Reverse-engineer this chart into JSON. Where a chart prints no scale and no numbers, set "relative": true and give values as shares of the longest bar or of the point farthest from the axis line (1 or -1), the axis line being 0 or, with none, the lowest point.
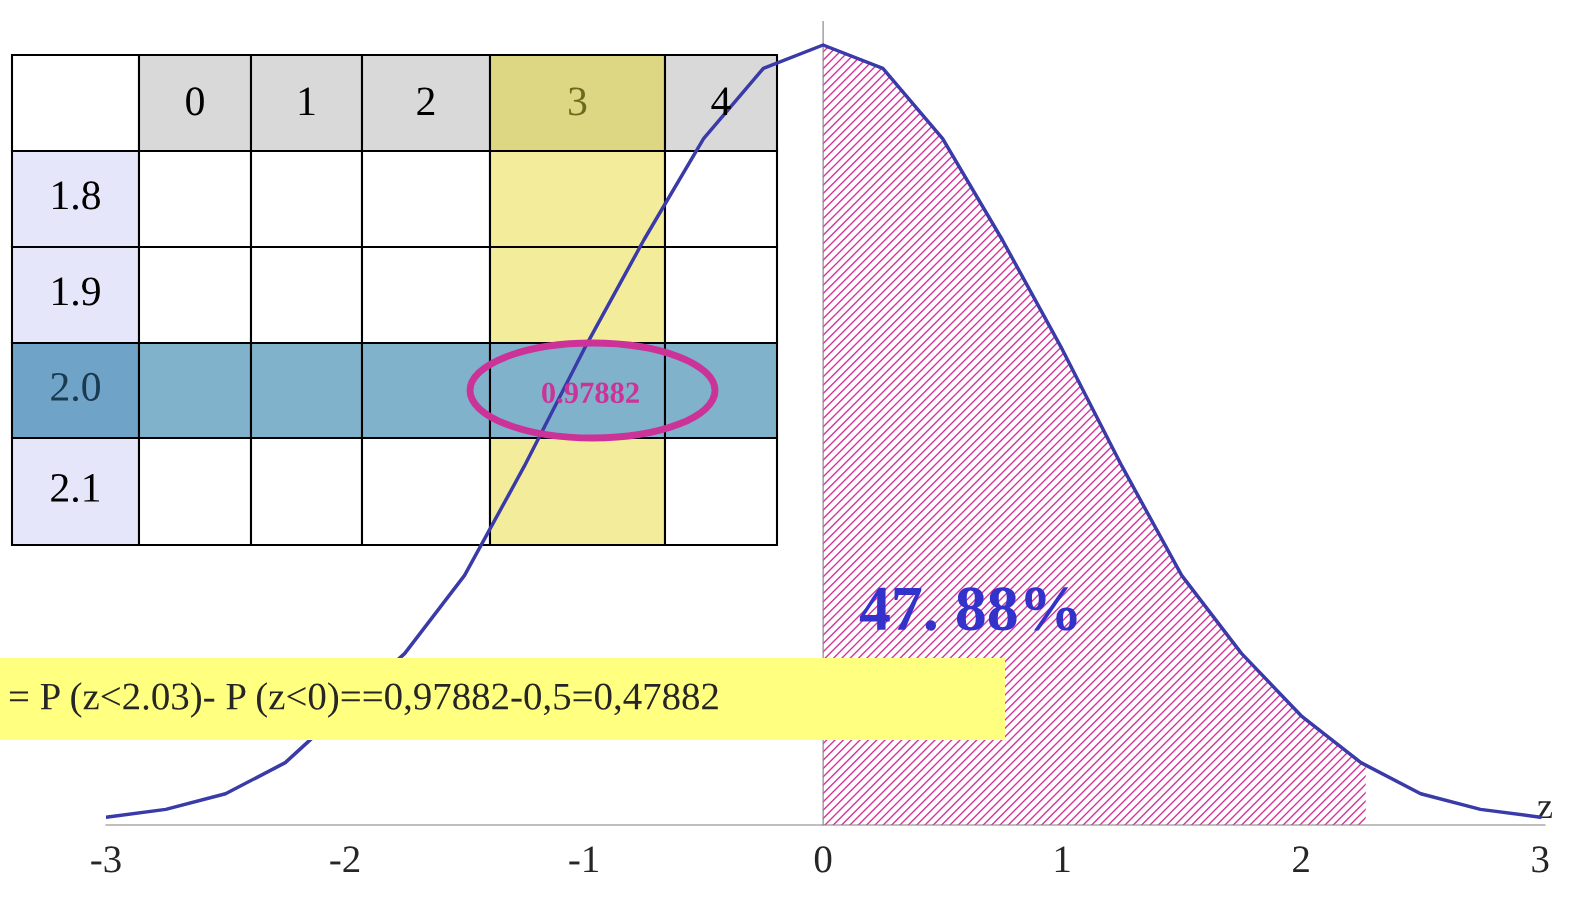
{
  "chart_data": {
    "type": "line",
    "relative": true,
    "xlabel": "z",
    "xlim": [
      -3,
      3.02
    ],
    "xticks": [
      -3,
      -2,
      -1,
      0,
      1,
      2,
      3
    ],
    "series": [
      {
        "color": "#3a3aa8",
        "x": [
          -3,
          -2.75,
          -2.5,
          -2.25,
          -2,
          -1.75,
          -1.5,
          -1.25,
          -1,
          -0.75,
          -0.5,
          -0.25,
          0,
          0.25,
          0.5,
          0.75,
          1,
          1.25,
          1.5,
          1.75,
          2,
          2.25,
          2.5,
          2.75,
          3
        ],
        "values": [
          0.01,
          0.02,
          0.04,
          0.08,
          null,
          0.22,
          0.32,
          0.46,
          0.61,
          0.75,
          0.88,
          0.97,
          1,
          0.97,
          0.88,
          0.75,
          0.61,
          0.46,
          0.32,
          0.22,
          0.14,
          0.08,
          0.04,
          0.02,
          0.01
        ]
      },
      {
        "type": "area",
        "color": "#d6339a",
        "x": [
          0,
          0.25,
          0.5,
          0.75,
          1,
          1.25,
          1.5,
          1.75,
          2,
          2.25,
          2.27
        ],
        "values": [
          1,
          0.97,
          0.88,
          0.75,
          0.61,
          0.46,
          0.32,
          0.22,
          0.14,
          0.08,
          0.08
        ]
      }
    ],
    "annotations": [
      "47. 88%",
      "= P (z<2.03)- P (z<0)==0,97882-0,5=0,47882",
      "0",
      "1",
      "2",
      "3",
      "4",
      "1.8",
      "1.9",
      "2.0",
      "2.1",
      "0.97882"
    ]
  }
}
